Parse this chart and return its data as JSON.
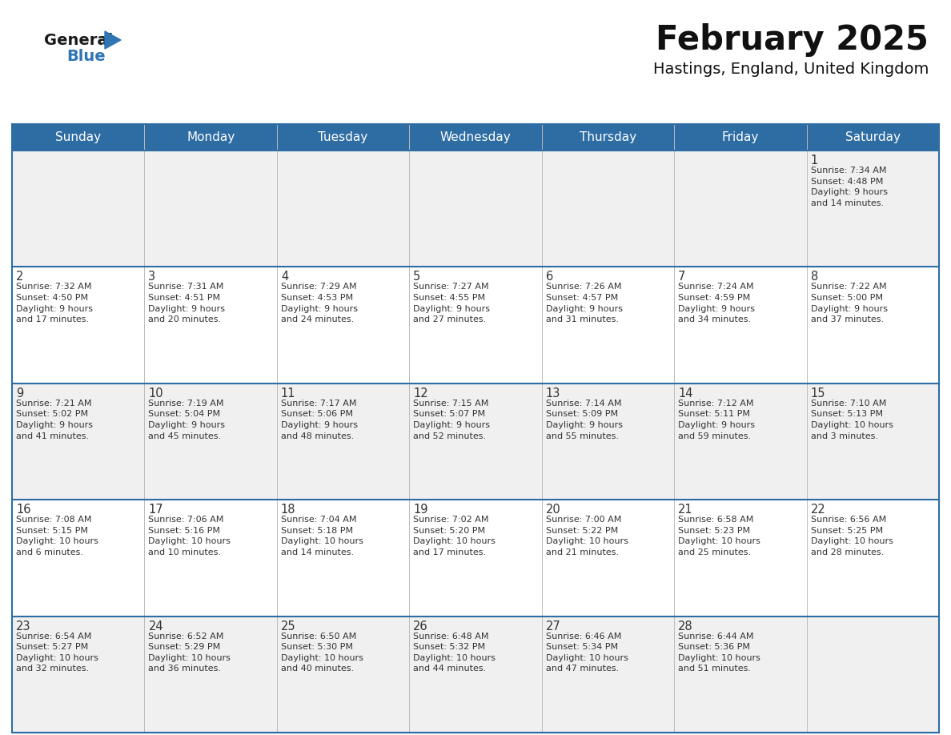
{
  "title": "February 2025",
  "subtitle": "Hastings, England, United Kingdom",
  "header_bg": "#2E6DA4",
  "header_text_color": "#FFFFFF",
  "cell_bg_odd": "#F0F0F0",
  "cell_bg_even": "#FFFFFF",
  "border_color": "#2E6DA4",
  "separator_color": "#BBBBBB",
  "day_headers": [
    "Sunday",
    "Monday",
    "Tuesday",
    "Wednesday",
    "Thursday",
    "Friday",
    "Saturday"
  ],
  "title_color": "#111111",
  "subtitle_color": "#111111",
  "day_num_color": "#333333",
  "cell_text_color": "#333333",
  "logo_general_color": "#1a1a1a",
  "logo_blue_color": "#2E75B6",
  "weeks": [
    [
      {
        "day": "",
        "text": ""
      },
      {
        "day": "",
        "text": ""
      },
      {
        "day": "",
        "text": ""
      },
      {
        "day": "",
        "text": ""
      },
      {
        "day": "",
        "text": ""
      },
      {
        "day": "",
        "text": ""
      },
      {
        "day": "1",
        "text": "Sunrise: 7:34 AM\nSunset: 4:48 PM\nDaylight: 9 hours\nand 14 minutes."
      }
    ],
    [
      {
        "day": "2",
        "text": "Sunrise: 7:32 AM\nSunset: 4:50 PM\nDaylight: 9 hours\nand 17 minutes."
      },
      {
        "day": "3",
        "text": "Sunrise: 7:31 AM\nSunset: 4:51 PM\nDaylight: 9 hours\nand 20 minutes."
      },
      {
        "day": "4",
        "text": "Sunrise: 7:29 AM\nSunset: 4:53 PM\nDaylight: 9 hours\nand 24 minutes."
      },
      {
        "day": "5",
        "text": "Sunrise: 7:27 AM\nSunset: 4:55 PM\nDaylight: 9 hours\nand 27 minutes."
      },
      {
        "day": "6",
        "text": "Sunrise: 7:26 AM\nSunset: 4:57 PM\nDaylight: 9 hours\nand 31 minutes."
      },
      {
        "day": "7",
        "text": "Sunrise: 7:24 AM\nSunset: 4:59 PM\nDaylight: 9 hours\nand 34 minutes."
      },
      {
        "day": "8",
        "text": "Sunrise: 7:22 AM\nSunset: 5:00 PM\nDaylight: 9 hours\nand 37 minutes."
      }
    ],
    [
      {
        "day": "9",
        "text": "Sunrise: 7:21 AM\nSunset: 5:02 PM\nDaylight: 9 hours\nand 41 minutes."
      },
      {
        "day": "10",
        "text": "Sunrise: 7:19 AM\nSunset: 5:04 PM\nDaylight: 9 hours\nand 45 minutes."
      },
      {
        "day": "11",
        "text": "Sunrise: 7:17 AM\nSunset: 5:06 PM\nDaylight: 9 hours\nand 48 minutes."
      },
      {
        "day": "12",
        "text": "Sunrise: 7:15 AM\nSunset: 5:07 PM\nDaylight: 9 hours\nand 52 minutes."
      },
      {
        "day": "13",
        "text": "Sunrise: 7:14 AM\nSunset: 5:09 PM\nDaylight: 9 hours\nand 55 minutes."
      },
      {
        "day": "14",
        "text": "Sunrise: 7:12 AM\nSunset: 5:11 PM\nDaylight: 9 hours\nand 59 minutes."
      },
      {
        "day": "15",
        "text": "Sunrise: 7:10 AM\nSunset: 5:13 PM\nDaylight: 10 hours\nand 3 minutes."
      }
    ],
    [
      {
        "day": "16",
        "text": "Sunrise: 7:08 AM\nSunset: 5:15 PM\nDaylight: 10 hours\nand 6 minutes."
      },
      {
        "day": "17",
        "text": "Sunrise: 7:06 AM\nSunset: 5:16 PM\nDaylight: 10 hours\nand 10 minutes."
      },
      {
        "day": "18",
        "text": "Sunrise: 7:04 AM\nSunset: 5:18 PM\nDaylight: 10 hours\nand 14 minutes."
      },
      {
        "day": "19",
        "text": "Sunrise: 7:02 AM\nSunset: 5:20 PM\nDaylight: 10 hours\nand 17 minutes."
      },
      {
        "day": "20",
        "text": "Sunrise: 7:00 AM\nSunset: 5:22 PM\nDaylight: 10 hours\nand 21 minutes."
      },
      {
        "day": "21",
        "text": "Sunrise: 6:58 AM\nSunset: 5:23 PM\nDaylight: 10 hours\nand 25 minutes."
      },
      {
        "day": "22",
        "text": "Sunrise: 6:56 AM\nSunset: 5:25 PM\nDaylight: 10 hours\nand 28 minutes."
      }
    ],
    [
      {
        "day": "23",
        "text": "Sunrise: 6:54 AM\nSunset: 5:27 PM\nDaylight: 10 hours\nand 32 minutes."
      },
      {
        "day": "24",
        "text": "Sunrise: 6:52 AM\nSunset: 5:29 PM\nDaylight: 10 hours\nand 36 minutes."
      },
      {
        "day": "25",
        "text": "Sunrise: 6:50 AM\nSunset: 5:30 PM\nDaylight: 10 hours\nand 40 minutes."
      },
      {
        "day": "26",
        "text": "Sunrise: 6:48 AM\nSunset: 5:32 PM\nDaylight: 10 hours\nand 44 minutes."
      },
      {
        "day": "27",
        "text": "Sunrise: 6:46 AM\nSunset: 5:34 PM\nDaylight: 10 hours\nand 47 minutes."
      },
      {
        "day": "28",
        "text": "Sunrise: 6:44 AM\nSunset: 5:36 PM\nDaylight: 10 hours\nand 51 minutes."
      },
      {
        "day": "",
        "text": ""
      }
    ]
  ]
}
